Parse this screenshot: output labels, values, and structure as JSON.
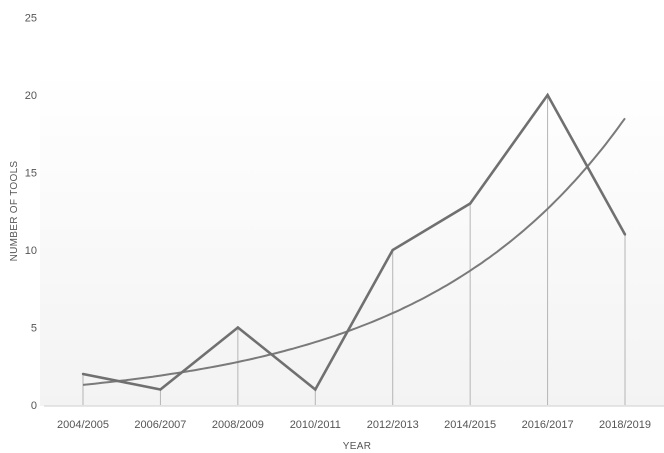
{
  "chart_data": {
    "type": "line",
    "title": "",
    "xlabel": "YEAR",
    "ylabel": "NUMBER OF TOOLS",
    "categories": [
      "2004/2005",
      "2006/2007",
      "2008/2009",
      "2010/2011",
      "2012/2013",
      "2014/2015",
      "2016/2017",
      "2018/2019"
    ],
    "yticks": [
      0,
      5,
      10,
      15,
      20,
      25
    ],
    "ylim": [
      0,
      25
    ],
    "grid": false,
    "legend": "none",
    "series": [
      {
        "values": [
          2,
          1,
          5,
          1,
          10,
          13,
          20,
          11
        ],
        "color": "#707070"
      }
    ],
    "trendline": {
      "type": "exponential",
      "values": [
        1.3,
        1.85,
        2.7,
        3.9,
        5.8,
        8.5,
        12.5,
        18.5
      ],
      "color": "#7a7a7a"
    },
    "drop_lines": true
  }
}
